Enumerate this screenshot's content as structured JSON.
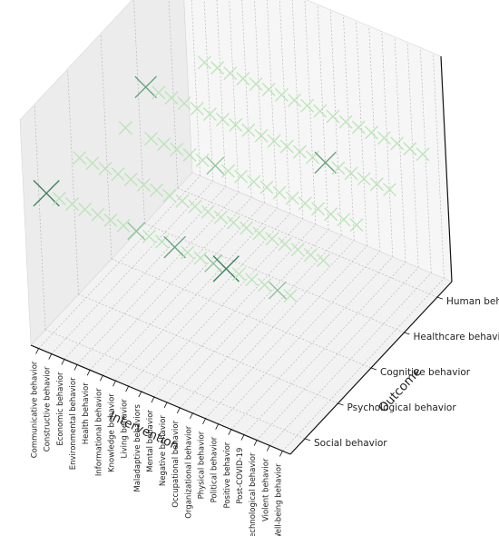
{
  "chart_data": {
    "type": "scatter3d",
    "title": "",
    "xlabel": "Intervention",
    "ylabel": "Outcome",
    "x_categories": [
      "Communicative behavior",
      "Constructive behavior",
      "Economic behavior",
      "Environmental behavior",
      "Health behavior",
      "Informational behavior",
      "Knowledge behavior",
      "Living behavior",
      "Maladaptive behaviors",
      "Mental behavior",
      "Negative behavior",
      "Occupational behavior",
      "Organizational behavior",
      "Physical behavior",
      "Political behavior",
      "Positive behavior",
      "Post-COVID-19",
      "Technological behavior",
      "Violent behavior",
      "Well-being behavior"
    ],
    "y_categories": [
      "Social behavior",
      "Psychological behavior",
      "Cognitive behavior",
      "Healthcare behavior",
      "Human behavior"
    ],
    "marker": "x",
    "colormap": "Greens",
    "grid": true,
    "points": [
      {
        "x": "Communicative behavior",
        "y": "Social behavior",
        "value": 4
      },
      {
        "x": "Communicative behavior",
        "y": "Psychological behavior",
        "value": 1
      },
      {
        "x": "Communicative behavior",
        "y": "Healthcare behavior",
        "value": 3
      },
      {
        "x": "Constructive behavior",
        "y": "Social behavior",
        "value": 1
      },
      {
        "x": "Constructive behavior",
        "y": "Psychological behavior",
        "value": 1
      },
      {
        "x": "Constructive behavior",
        "y": "Cognitive behavior",
        "value": 1
      },
      {
        "x": "Constructive behavior",
        "y": "Healthcare behavior",
        "value": 1
      },
      {
        "x": "Economic behavior",
        "y": "Social behavior",
        "value": 1
      },
      {
        "x": "Economic behavior",
        "y": "Psychological behavior",
        "value": 1
      },
      {
        "x": "Economic behavior",
        "y": "Healthcare behavior",
        "value": 1
      },
      {
        "x": "Economic behavior",
        "y": "Human behavior",
        "value": 1
      },
      {
        "x": "Environmental behavior",
        "y": "Social behavior",
        "value": 1
      },
      {
        "x": "Environmental behavior",
        "y": "Psychological behavior",
        "value": 1
      },
      {
        "x": "Environmental behavior",
        "y": "Cognitive behavior",
        "value": 1
      },
      {
        "x": "Environmental behavior",
        "y": "Healthcare behavior",
        "value": 1
      },
      {
        "x": "Environmental behavior",
        "y": "Human behavior",
        "value": 1
      },
      {
        "x": "Health behavior",
        "y": "Social behavior",
        "value": 1
      },
      {
        "x": "Health behavior",
        "y": "Psychological behavior",
        "value": 1
      },
      {
        "x": "Health behavior",
        "y": "Cognitive behavior",
        "value": 1
      },
      {
        "x": "Health behavior",
        "y": "Healthcare behavior",
        "value": 1
      },
      {
        "x": "Health behavior",
        "y": "Human behavior",
        "value": 1
      },
      {
        "x": "Informational behavior",
        "y": "Social behavior",
        "value": 1
      },
      {
        "x": "Informational behavior",
        "y": "Psychological behavior",
        "value": 1
      },
      {
        "x": "Informational behavior",
        "y": "Cognitive behavior",
        "value": 1
      },
      {
        "x": "Informational behavior",
        "y": "Healthcare behavior",
        "value": 1
      },
      {
        "x": "Informational behavior",
        "y": "Human behavior",
        "value": 1
      },
      {
        "x": "Knowledge behavior",
        "y": "Social behavior",
        "value": 1
      },
      {
        "x": "Knowledge behavior",
        "y": "Psychological behavior",
        "value": 1
      },
      {
        "x": "Knowledge behavior",
        "y": "Cognitive behavior",
        "value": 1
      },
      {
        "x": "Knowledge behavior",
        "y": "Healthcare behavior",
        "value": 1
      },
      {
        "x": "Knowledge behavior",
        "y": "Human behavior",
        "value": 1
      },
      {
        "x": "Living behavior",
        "y": "Social behavior",
        "value": 2
      },
      {
        "x": "Living behavior",
        "y": "Psychological behavior",
        "value": 1
      },
      {
        "x": "Living behavior",
        "y": "Cognitive behavior",
        "value": 1
      },
      {
        "x": "Living behavior",
        "y": "Healthcare behavior",
        "value": 1
      },
      {
        "x": "Living behavior",
        "y": "Human behavior",
        "value": 1
      },
      {
        "x": "Maladaptive behaviors",
        "y": "Social behavior",
        "value": 1
      },
      {
        "x": "Maladaptive behaviors",
        "y": "Psychological behavior",
        "value": 1
      },
      {
        "x": "Maladaptive behaviors",
        "y": "Cognitive behavior",
        "value": 2
      },
      {
        "x": "Maladaptive behaviors",
        "y": "Healthcare behavior",
        "value": 1
      },
      {
        "x": "Maladaptive behaviors",
        "y": "Human behavior",
        "value": 1
      },
      {
        "x": "Mental behavior",
        "y": "Social behavior",
        "value": 1
      },
      {
        "x": "Mental behavior",
        "y": "Psychological behavior",
        "value": 1
      },
      {
        "x": "Mental behavior",
        "y": "Cognitive behavior",
        "value": 1
      },
      {
        "x": "Mental behavior",
        "y": "Healthcare behavior",
        "value": 1
      },
      {
        "x": "Mental behavior",
        "y": "Human behavior",
        "value": 1
      },
      {
        "x": "Negative behavior",
        "y": "Social behavior",
        "value": 3
      },
      {
        "x": "Negative behavior",
        "y": "Psychological behavior",
        "value": 1
      },
      {
        "x": "Negative behavior",
        "y": "Cognitive behavior",
        "value": 1
      },
      {
        "x": "Negative behavior",
        "y": "Healthcare behavior",
        "value": 1
      },
      {
        "x": "Negative behavior",
        "y": "Human behavior",
        "value": 1
      },
      {
        "x": "Occupational behavior",
        "y": "Social behavior",
        "value": 1
      },
      {
        "x": "Occupational behavior",
        "y": "Psychological behavior",
        "value": 1
      },
      {
        "x": "Occupational behavior",
        "y": "Cognitive behavior",
        "value": 1
      },
      {
        "x": "Occupational behavior",
        "y": "Healthcare behavior",
        "value": 1
      },
      {
        "x": "Occupational behavior",
        "y": "Human behavior",
        "value": 1
      },
      {
        "x": "Organizational behavior",
        "y": "Social behavior",
        "value": 1
      },
      {
        "x": "Organizational behavior",
        "y": "Psychological behavior",
        "value": 1
      },
      {
        "x": "Organizational behavior",
        "y": "Cognitive behavior",
        "value": 1
      },
      {
        "x": "Organizational behavior",
        "y": "Healthcare behavior",
        "value": 1
      },
      {
        "x": "Organizational behavior",
        "y": "Human behavior",
        "value": 1
      },
      {
        "x": "Physical behavior",
        "y": "Social behavior",
        "value": 2
      },
      {
        "x": "Physical behavior",
        "y": "Psychological behavior",
        "value": 1
      },
      {
        "x": "Physical behavior",
        "y": "Cognitive behavior",
        "value": 1
      },
      {
        "x": "Physical behavior",
        "y": "Healthcare behavior",
        "value": 1
      },
      {
        "x": "Physical behavior",
        "y": "Human behavior",
        "value": 1
      },
      {
        "x": "Political behavior",
        "y": "Social behavior",
        "value": 4
      },
      {
        "x": "Political behavior",
        "y": "Psychological behavior",
        "value": 1
      },
      {
        "x": "Political behavior",
        "y": "Cognitive behavior",
        "value": 1
      },
      {
        "x": "Political behavior",
        "y": "Healthcare behavior",
        "value": 3
      },
      {
        "x": "Political behavior",
        "y": "Human behavior",
        "value": 1
      },
      {
        "x": "Positive behavior",
        "y": "Social behavior",
        "value": 1
      },
      {
        "x": "Positive behavior",
        "y": "Psychological behavior",
        "value": 1
      },
      {
        "x": "Positive behavior",
        "y": "Cognitive behavior",
        "value": 1
      },
      {
        "x": "Positive behavior",
        "y": "Healthcare behavior",
        "value": 1
      },
      {
        "x": "Positive behavior",
        "y": "Human behavior",
        "value": 1
      },
      {
        "x": "Post-COVID-19",
        "y": "Social behavior",
        "value": 1
      },
      {
        "x": "Post-COVID-19",
        "y": "Psychological behavior",
        "value": 1
      },
      {
        "x": "Post-COVID-19",
        "y": "Cognitive behavior",
        "value": 1
      },
      {
        "x": "Post-COVID-19",
        "y": "Healthcare behavior",
        "value": 1
      },
      {
        "x": "Post-COVID-19",
        "y": "Human behavior",
        "value": 1
      },
      {
        "x": "Technological behavior",
        "y": "Social behavior",
        "value": 1
      },
      {
        "x": "Technological behavior",
        "y": "Psychological behavior",
        "value": 1
      },
      {
        "x": "Technological behavior",
        "y": "Cognitive behavior",
        "value": 1
      },
      {
        "x": "Technological behavior",
        "y": "Healthcare behavior",
        "value": 1
      },
      {
        "x": "Technological behavior",
        "y": "Human behavior",
        "value": 1
      },
      {
        "x": "Violent behavior",
        "y": "Social behavior",
        "value": 2
      },
      {
        "x": "Violent behavior",
        "y": "Psychological behavior",
        "value": 1
      },
      {
        "x": "Violent behavior",
        "y": "Cognitive behavior",
        "value": 1
      },
      {
        "x": "Violent behavior",
        "y": "Healthcare behavior",
        "value": 1
      },
      {
        "x": "Violent behavior",
        "y": "Human behavior",
        "value": 1
      },
      {
        "x": "Well-being behavior",
        "y": "Social behavior",
        "value": 1
      },
      {
        "x": "Well-being behavior",
        "y": "Psychological behavior",
        "value": 1
      },
      {
        "x": "Well-being behavior",
        "y": "Cognitive behavior",
        "value": 1
      },
      {
        "x": "Well-being behavior",
        "y": "Healthcare behavior",
        "value": 1
      },
      {
        "x": "Well-being behavior",
        "y": "Human behavior",
        "value": 1
      }
    ]
  }
}
